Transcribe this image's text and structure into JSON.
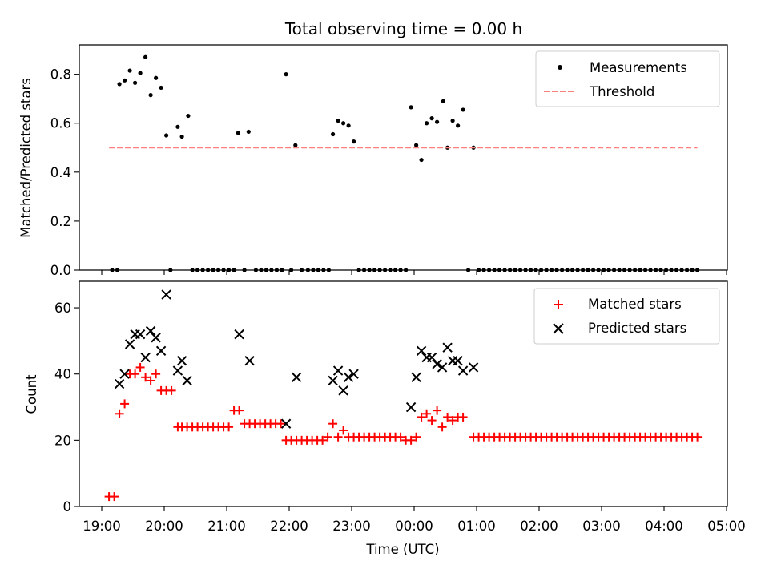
{
  "chart_data": [
    {
      "type": "scatter",
      "title": "Total observing time = 0.00 h",
      "xlabel": "",
      "ylabel": "Matched/Predicted stars",
      "ylim": [
        0,
        0.92
      ],
      "yticks": [
        "0.0",
        "0.2",
        "0.4",
        "0.6",
        "0.8"
      ],
      "legend_position": "top-right",
      "series": [
        {
          "name": "Measurements",
          "kind": "points",
          "color": "#000000",
          "points": [
            [
              "19:10",
              0
            ],
            [
              "19:15",
              0
            ],
            [
              "19:17",
              0.76
            ],
            [
              "19:22",
              0.775
            ],
            [
              "19:27",
              0.815
            ],
            [
              "19:32",
              0.765
            ],
            [
              "19:37",
              0.805
            ],
            [
              "19:42",
              0.87
            ],
            [
              "19:47",
              0.715
            ],
            [
              "19:52",
              0.785
            ],
            [
              "19:57",
              0.745
            ],
            [
              "20:02",
              0.55
            ],
            [
              "20:06",
              0
            ],
            [
              "20:13",
              0.585
            ],
            [
              "20:17",
              0.545
            ],
            [
              "20:23",
              0.63
            ],
            [
              "20:27",
              0
            ],
            [
              "20:32",
              0
            ],
            [
              "20:37",
              0
            ],
            [
              "20:42",
              0
            ],
            [
              "20:47",
              0
            ],
            [
              "20:52",
              0
            ],
            [
              "20:57",
              0
            ],
            [
              "21:02",
              0
            ],
            [
              "21:07",
              0
            ],
            [
              "21:11",
              0.56
            ],
            [
              "21:17",
              0
            ],
            [
              "21:21",
              0.565
            ],
            [
              "21:28",
              0
            ],
            [
              "21:33",
              0
            ],
            [
              "21:38",
              0
            ],
            [
              "21:43",
              0
            ],
            [
              "21:48",
              0
            ],
            [
              "21:53",
              0
            ],
            [
              "21:57",
              0.8
            ],
            [
              "22:02",
              0
            ],
            [
              "22:06",
              0.51
            ],
            [
              "22:12",
              0
            ],
            [
              "22:18",
              0
            ],
            [
              "22:23",
              0
            ],
            [
              "22:28",
              0
            ],
            [
              "22:33",
              0
            ],
            [
              "22:38",
              0
            ],
            [
              "22:42",
              0.555
            ],
            [
              "22:47",
              0.61
            ],
            [
              "22:52",
              0.6
            ],
            [
              "22:57",
              0.59
            ],
            [
              "23:02",
              0.525
            ],
            [
              "23:07",
              0
            ],
            [
              "23:12",
              0
            ],
            [
              "23:17",
              0
            ],
            [
              "23:22",
              0
            ],
            [
              "23:27",
              0
            ],
            [
              "23:32",
              0
            ],
            [
              "23:37",
              0
            ],
            [
              "23:42",
              0
            ],
            [
              "23:47",
              0
            ],
            [
              "23:52",
              0
            ],
            [
              "23:57",
              0.665
            ],
            [
              "00:02",
              0.51
            ],
            [
              "00:07",
              0.45
            ],
            [
              "00:12",
              0.6
            ],
            [
              "00:17",
              0.62
            ],
            [
              "00:22",
              0.605
            ],
            [
              "00:28",
              0.69
            ],
            [
              "00:32",
              0.5
            ],
            [
              "00:37",
              0.61
            ],
            [
              "00:42",
              0.59
            ],
            [
              "00:47",
              0.655
            ],
            [
              "00:52",
              0
            ],
            [
              "00:57",
              0.5
            ],
            [
              "01:02",
              0
            ],
            [
              "01:07",
              0
            ],
            [
              "01:12",
              0
            ],
            [
              "01:17",
              0
            ],
            [
              "01:22",
              0
            ],
            [
              "01:27",
              0
            ],
            [
              "01:32",
              0
            ],
            [
              "01:37",
              0
            ],
            [
              "01:42",
              0
            ],
            [
              "01:47",
              0
            ],
            [
              "01:52",
              0
            ],
            [
              "01:57",
              0
            ],
            [
              "02:02",
              0
            ],
            [
              "02:07",
              0
            ],
            [
              "02:12",
              0
            ],
            [
              "02:17",
              0
            ],
            [
              "02:22",
              0
            ],
            [
              "02:27",
              0
            ],
            [
              "02:32",
              0
            ],
            [
              "02:37",
              0
            ],
            [
              "02:42",
              0
            ],
            [
              "02:47",
              0
            ],
            [
              "02:52",
              0
            ],
            [
              "02:57",
              0
            ],
            [
              "03:02",
              0
            ],
            [
              "03:07",
              0
            ],
            [
              "03:12",
              0
            ],
            [
              "03:17",
              0
            ],
            [
              "03:22",
              0
            ],
            [
              "03:27",
              0
            ],
            [
              "03:32",
              0
            ],
            [
              "03:37",
              0
            ],
            [
              "03:42",
              0
            ],
            [
              "03:47",
              0
            ],
            [
              "03:52",
              0
            ],
            [
              "03:57",
              0
            ],
            [
              "04:02",
              0
            ],
            [
              "04:07",
              0
            ],
            [
              "04:12",
              0
            ],
            [
              "04:17",
              0
            ],
            [
              "04:22",
              0
            ],
            [
              "04:27",
              0
            ],
            [
              "04:32",
              0
            ]
          ]
        },
        {
          "name": "Threshold",
          "kind": "dashed-line",
          "color": "#ff7f7f",
          "points": [
            [
              "19:07",
              0.5
            ],
            [
              "04:32",
              0.5
            ]
          ]
        }
      ]
    },
    {
      "type": "scatter",
      "title": "",
      "xlabel": "Time (UTC)",
      "ylabel": "Count",
      "ylim": [
        0,
        68
      ],
      "yticks": [
        "0",
        "20",
        "40",
        "60"
      ],
      "xticks": [
        "19:00",
        "20:00",
        "21:00",
        "22:00",
        "23:00",
        "00:00",
        "01:00",
        "02:00",
        "03:00",
        "04:00",
        "05:00"
      ],
      "legend_position": "top-right",
      "series": [
        {
          "name": "Matched stars",
          "kind": "plus",
          "color": "#ff0000",
          "points": [
            [
              "19:07",
              3
            ],
            [
              "19:12",
              3
            ],
            [
              "19:17",
              28
            ],
            [
              "19:22",
              31
            ],
            [
              "19:27",
              40
            ],
            [
              "19:32",
              40
            ],
            [
              "19:37",
              42
            ],
            [
              "19:42",
              39
            ],
            [
              "19:47",
              38
            ],
            [
              "19:52",
              40
            ],
            [
              "19:57",
              35
            ],
            [
              "20:02",
              35
            ],
            [
              "20:07",
              35
            ],
            [
              "20:13",
              24
            ],
            [
              "20:17",
              24
            ],
            [
              "20:22",
              24
            ],
            [
              "20:27",
              24
            ],
            [
              "20:32",
              24
            ],
            [
              "20:37",
              24
            ],
            [
              "20:42",
              24
            ],
            [
              "20:47",
              24
            ],
            [
              "20:52",
              24
            ],
            [
              "20:57",
              24
            ],
            [
              "21:02",
              24
            ],
            [
              "21:07",
              29
            ],
            [
              "21:12",
              29
            ],
            [
              "21:17",
              25
            ],
            [
              "21:22",
              25
            ],
            [
              "21:27",
              25
            ],
            [
              "21:32",
              25
            ],
            [
              "21:37",
              25
            ],
            [
              "21:42",
              25
            ],
            [
              "21:47",
              25
            ],
            [
              "21:52",
              25
            ],
            [
              "21:57",
              20
            ],
            [
              "22:02",
              20
            ],
            [
              "22:07",
              20
            ],
            [
              "22:12",
              20
            ],
            [
              "22:17",
              20
            ],
            [
              "22:22",
              20
            ],
            [
              "22:27",
              20
            ],
            [
              "22:32",
              20
            ],
            [
              "22:37",
              21
            ],
            [
              "22:42",
              25
            ],
            [
              "22:47",
              21
            ],
            [
              "22:52",
              23
            ],
            [
              "22:57",
              21
            ],
            [
              "23:02",
              21
            ],
            [
              "23:07",
              21
            ],
            [
              "23:12",
              21
            ],
            [
              "23:17",
              21
            ],
            [
              "23:22",
              21
            ],
            [
              "23:27",
              21
            ],
            [
              "23:32",
              21
            ],
            [
              "23:37",
              21
            ],
            [
              "23:42",
              21
            ],
            [
              "23:47",
              21
            ],
            [
              "23:52",
              20
            ],
            [
              "23:57",
              20
            ],
            [
              "00:02",
              21
            ],
            [
              "00:07",
              27
            ],
            [
              "00:12",
              28
            ],
            [
              "00:17",
              26
            ],
            [
              "00:22",
              29
            ],
            [
              "00:27",
              24
            ],
            [
              "00:32",
              27
            ],
            [
              "00:37",
              26
            ],
            [
              "00:42",
              27
            ],
            [
              "00:47",
              27
            ],
            [
              "00:57",
              21
            ],
            [
              "01:02",
              21
            ],
            [
              "01:07",
              21
            ],
            [
              "01:12",
              21
            ],
            [
              "01:17",
              21
            ],
            [
              "01:22",
              21
            ],
            [
              "01:27",
              21
            ],
            [
              "01:32",
              21
            ],
            [
              "01:37",
              21
            ],
            [
              "01:42",
              21
            ],
            [
              "01:47",
              21
            ],
            [
              "01:52",
              21
            ],
            [
              "01:57",
              21
            ],
            [
              "02:02",
              21
            ],
            [
              "02:07",
              21
            ],
            [
              "02:12",
              21
            ],
            [
              "02:17",
              21
            ],
            [
              "02:22",
              21
            ],
            [
              "02:27",
              21
            ],
            [
              "02:32",
              21
            ],
            [
              "02:37",
              21
            ],
            [
              "02:42",
              21
            ],
            [
              "02:47",
              21
            ],
            [
              "02:52",
              21
            ],
            [
              "02:57",
              21
            ],
            [
              "03:02",
              21
            ],
            [
              "03:07",
              21
            ],
            [
              "03:12",
              21
            ],
            [
              "03:17",
              21
            ],
            [
              "03:22",
              21
            ],
            [
              "03:27",
              21
            ],
            [
              "03:32",
              21
            ],
            [
              "03:37",
              21
            ],
            [
              "03:42",
              21
            ],
            [
              "03:47",
              21
            ],
            [
              "03:52",
              21
            ],
            [
              "03:57",
              21
            ],
            [
              "04:02",
              21
            ],
            [
              "04:07",
              21
            ],
            [
              "04:12",
              21
            ],
            [
              "04:17",
              21
            ],
            [
              "04:22",
              21
            ],
            [
              "04:27",
              21
            ],
            [
              "04:32",
              21
            ]
          ]
        },
        {
          "name": "Predicted stars",
          "kind": "cross",
          "color": "#000000",
          "points": [
            [
              "19:17",
              37
            ],
            [
              "19:22",
              40
            ],
            [
              "19:27",
              49
            ],
            [
              "19:32",
              52
            ],
            [
              "19:37",
              52
            ],
            [
              "19:42",
              45
            ],
            [
              "19:47",
              53
            ],
            [
              "19:52",
              51
            ],
            [
              "19:57",
              47
            ],
            [
              "20:02",
              64
            ],
            [
              "20:13",
              41
            ],
            [
              "20:17",
              44
            ],
            [
              "20:22",
              38
            ],
            [
              "21:12",
              52
            ],
            [
              "21:22",
              44
            ],
            [
              "21:57",
              25
            ],
            [
              "22:07",
              39
            ],
            [
              "22:42",
              38
            ],
            [
              "22:47",
              41
            ],
            [
              "22:52",
              35
            ],
            [
              "22:57",
              39
            ],
            [
              "23:02",
              40
            ],
            [
              "23:57",
              30
            ],
            [
              "00:02",
              39
            ],
            [
              "00:07",
              47
            ],
            [
              "00:12",
              45
            ],
            [
              "00:17",
              45
            ],
            [
              "00:22",
              43
            ],
            [
              "00:27",
              42
            ],
            [
              "00:32",
              48
            ],
            [
              "00:37",
              44
            ],
            [
              "00:42",
              44
            ],
            [
              "00:47",
              41
            ],
            [
              "00:57",
              42
            ]
          ]
        }
      ]
    }
  ]
}
